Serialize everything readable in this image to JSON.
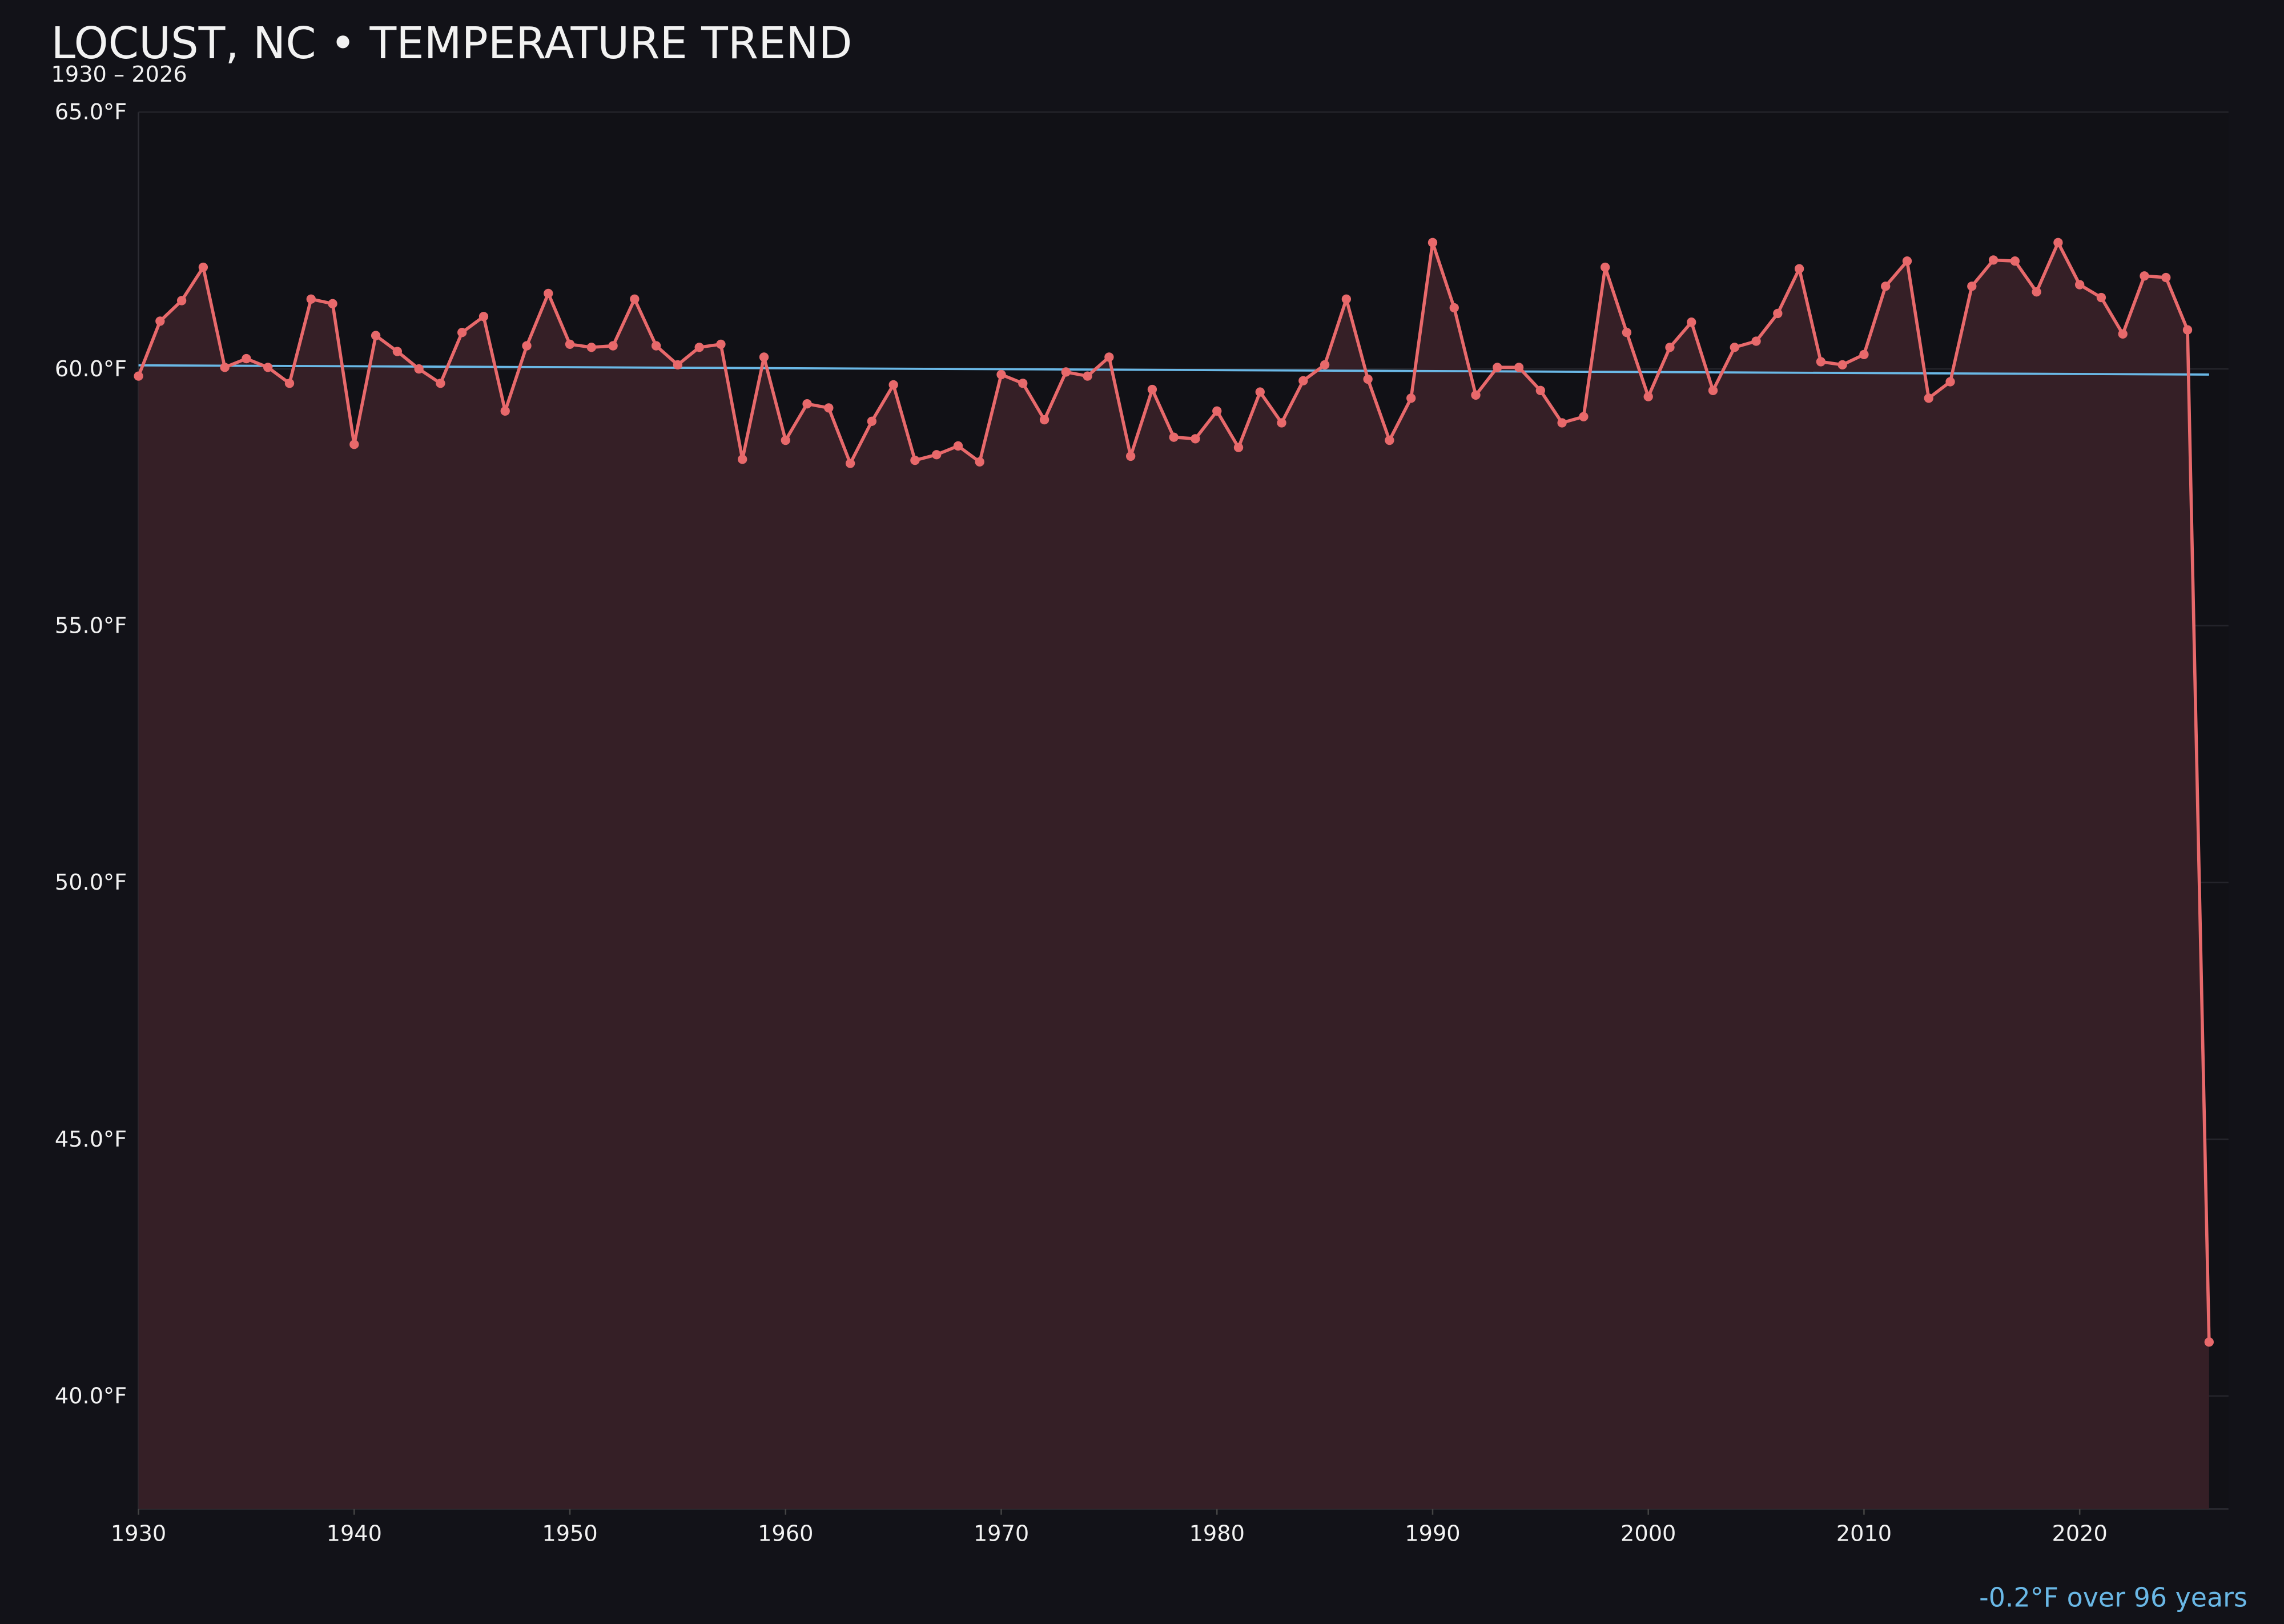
{
  "chart_data": {
    "type": "line",
    "title": "LOCUST, NC • TEMPERATURE TREND",
    "subtitle": "1930 – 2026",
    "annotation": "-0.2°F over 96 years",
    "color": "#e8696b",
    "area_color": "#351f26",
    "x": [
      1930,
      1931,
      1932,
      1933,
      1934,
      1935,
      1936,
      1937,
      1938,
      1939,
      1940,
      1941,
      1942,
      1943,
      1944,
      1945,
      1946,
      1947,
      1948,
      1949,
      1950,
      1951,
      1952,
      1953,
      1954,
      1955,
      1956,
      1957,
      1958,
      1959,
      1960,
      1961,
      1962,
      1963,
      1964,
      1965,
      1966,
      1967,
      1968,
      1969,
      1970,
      1971,
      1972,
      1973,
      1974,
      1975,
      1976,
      1977,
      1978,
      1979,
      1980,
      1981,
      1982,
      1983,
      1984,
      1985,
      1986,
      1987,
      1988,
      1989,
      1990,
      1991,
      1992,
      1993,
      1994,
      1995,
      1996,
      1997,
      1998,
      1999,
      2000,
      2001,
      2002,
      2003,
      2004,
      2005,
      2006,
      2007,
      2008,
      2009,
      2010,
      2011,
      2012,
      2013,
      2014,
      2015,
      2016,
      2017,
      2018,
      2019,
      2020,
      2021,
      2022,
      2023,
      2024,
      2025,
      2026
    ],
    "values": [
      59.86,
      60.93,
      61.33,
      61.98,
      60.03,
      60.2,
      60.03,
      59.72,
      61.36,
      61.27,
      58.53,
      60.65,
      60.34,
      60.0,
      59.72,
      60.71,
      61.02,
      59.18,
      60.45,
      61.47,
      60.48,
      60.42,
      60.45,
      61.36,
      60.45,
      60.08,
      60.42,
      60.48,
      58.24,
      60.23,
      58.61,
      59.32,
      59.24,
      58.16,
      58.98,
      59.69,
      58.22,
      58.33,
      58.5,
      58.19,
      59.89,
      59.72,
      59.01,
      59.94,
      59.86,
      60.23,
      58.3,
      59.6,
      58.67,
      58.64,
      59.18,
      58.47,
      59.55,
      58.95,
      59.77,
      60.08,
      61.36,
      59.8,
      58.61,
      59.43,
      62.46,
      61.19,
      59.49,
      60.03,
      60.03,
      59.58,
      58.95,
      59.07,
      61.98,
      60.71,
      59.46,
      60.42,
      60.91,
      59.58,
      60.42,
      60.54,
      61.08,
      61.95,
      60.14,
      60.08,
      60.28,
      61.61,
      62.1,
      59.43,
      59.75,
      61.61,
      62.12,
      62.1,
      61.5,
      62.46,
      61.64,
      61.39,
      60.68,
      61.81,
      61.78,
      60.76,
      41.05
    ],
    "trend": {
      "x": [
        1930,
        2026
      ],
      "values": [
        60.07,
        59.89
      ],
      "color": "#6ab8e6"
    },
    "xlim": [
      1930,
      2026.9
    ],
    "ylim": [
      37.8,
      65
    ],
    "xticks": [
      1930,
      1940,
      1950,
      1960,
      1970,
      1980,
      1990,
      2000,
      2010,
      2020
    ],
    "yticks": [
      {
        "value": 40,
        "label": "40.0°F"
      },
      {
        "value": 45,
        "label": "45.0°F"
      },
      {
        "value": 50,
        "label": "50.0°F"
      },
      {
        "value": 55,
        "label": "55.0°F"
      },
      {
        "value": 60,
        "label": "60.0°F"
      },
      {
        "value": 65,
        "label": "65.0°F"
      }
    ],
    "grid": true
  }
}
